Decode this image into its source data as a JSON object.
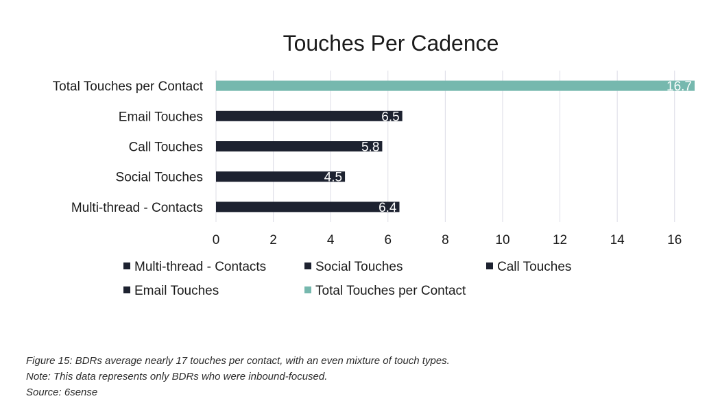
{
  "chart_data": {
    "type": "bar",
    "orientation": "horizontal",
    "title": "Touches Per Cadence",
    "categories": [
      "Total Touches per Contact",
      "Email Touches",
      "Call Touches",
      "Social Touches",
      "Multi-thread - Contacts"
    ],
    "values": [
      16.7,
      6.5,
      5.8,
      4.5,
      6.4
    ],
    "data_labels": [
      "16.7",
      "6.5",
      "5.8",
      "4.5",
      "6.4"
    ],
    "bar_colors": [
      "#76b8ae",
      "#1d2230",
      "#1d2230",
      "#1d2230",
      "#1d2230"
    ],
    "xlim": [
      0,
      16.7
    ],
    "xticks": [
      0,
      2,
      4,
      6,
      8,
      10,
      12,
      14,
      16
    ],
    "xtick_labels": [
      "0",
      "2",
      "4",
      "6",
      "8",
      "10",
      "12",
      "14",
      "16"
    ],
    "grid": "vertical",
    "legend_placement": "bottom",
    "legend": [
      {
        "name": "Multi-thread - Contacts",
        "color": "#1d2230"
      },
      {
        "name": "Social Touches",
        "color": "#1d2230"
      },
      {
        "name": "Call Touches",
        "color": "#1d2230"
      },
      {
        "name": "Email Touches",
        "color": "#1d2230"
      },
      {
        "name": "Total Touches per Contact",
        "color": "#76b8ae"
      }
    ],
    "colors": {
      "dark": "#1d2230",
      "teal": "#76b8ae",
      "grid": "#dcdce6"
    }
  },
  "caption": {
    "line1": "Figure 15: BDRs average nearly 17 touches per contact, with an even mixture of touch types.",
    "line2": "Note: This data represents only BDRs who were inbound-focused.",
    "line3": "Source: 6sense"
  }
}
